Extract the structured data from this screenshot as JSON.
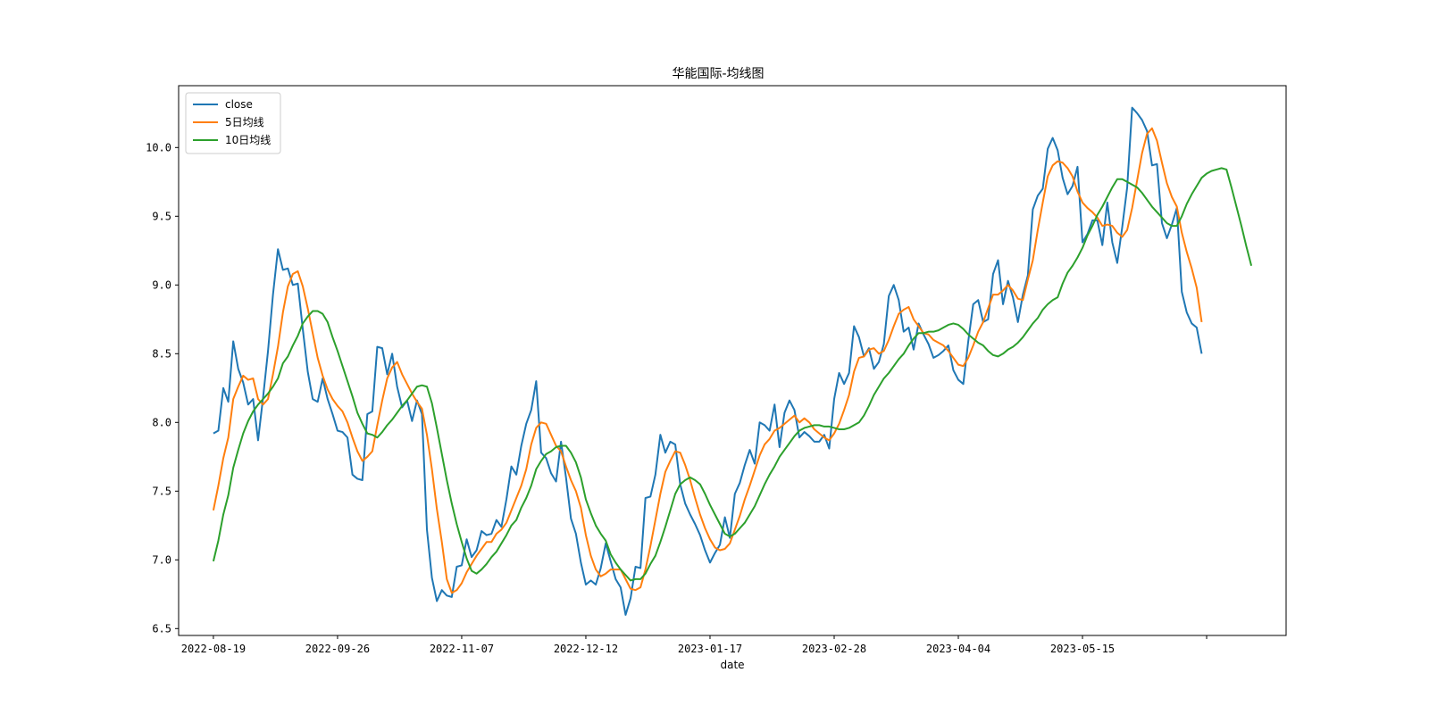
{
  "chart_data": {
    "type": "line",
    "title": "华能国际-均线图",
    "xlabel": "date",
    "ylabel": "",
    "ylim": [
      6.45,
      10.45
    ],
    "yticks": [
      6.5,
      7.0,
      7.5,
      8.0,
      8.5,
      9.0,
      9.5,
      10.0
    ],
    "ytick_labels": [
      "6.5",
      "7.0",
      "7.5",
      "8.0",
      "8.5",
      "9.0",
      "9.5",
      "10.0"
    ],
    "xlim": [
      -7,
      216
    ],
    "xticks": [
      0,
      25,
      50,
      75,
      100,
      125,
      150,
      175,
      200
    ],
    "xtick_labels": [
      "2022-08-19",
      "2022-09-26",
      "2022-11-07",
      "2022-12-12",
      "2023-01-17",
      "2023-02-28",
      "2023-04-04",
      "2023-05-15",
      ""
    ],
    "grid": false,
    "legend_position": "upper-left",
    "series": [
      {
        "name": "close",
        "color": "#1f77b4",
        "values": [
          7.92,
          7.94,
          8.25,
          8.15,
          8.59,
          8.39,
          8.29,
          8.13,
          8.17,
          7.87,
          8.18,
          8.52,
          8.93,
          9.26,
          9.11,
          9.12,
          9.0,
          9.01,
          8.68,
          8.37,
          8.17,
          8.15,
          8.32,
          8.17,
          8.06,
          7.94,
          7.93,
          7.89,
          7.62,
          7.59,
          7.58,
          8.06,
          8.08,
          8.55,
          8.54,
          8.35,
          8.5,
          8.26,
          8.11,
          8.16,
          8.01,
          8.16,
          8.06,
          7.22,
          6.87,
          6.7,
          6.78,
          6.74,
          6.73,
          6.95,
          6.96,
          7.15,
          7.02,
          7.07,
          7.21,
          7.18,
          7.19,
          7.29,
          7.24,
          7.44,
          7.68,
          7.62,
          7.83,
          7.99,
          8.09,
          8.3,
          7.78,
          7.74,
          7.63,
          7.57,
          7.86,
          7.6,
          7.3,
          7.19,
          6.98,
          6.82,
          6.85,
          6.82,
          6.94,
          7.12,
          6.99,
          6.86,
          6.8,
          6.6,
          6.72,
          6.95,
          6.94,
          7.45,
          7.46,
          7.62,
          7.91,
          7.78,
          7.86,
          7.84,
          7.55,
          7.41,
          7.33,
          7.26,
          7.18,
          7.07,
          6.98,
          7.05,
          7.11,
          7.31,
          7.16,
          7.48,
          7.56,
          7.69,
          7.8,
          7.7,
          8.0,
          7.98,
          7.94,
          8.13,
          7.82,
          8.07,
          8.16,
          8.09,
          7.89,
          7.93,
          7.9,
          7.86,
          7.86,
          7.91,
          7.81,
          8.17,
          8.36,
          8.28,
          8.36,
          8.7,
          8.62,
          8.48,
          8.54,
          8.39,
          8.44,
          8.57,
          8.92,
          9.0,
          8.89,
          8.66,
          8.69,
          8.53,
          8.72,
          8.64,
          8.57,
          8.47,
          8.49,
          8.52,
          8.56,
          8.38,
          8.31,
          8.28,
          8.59,
          8.86,
          8.89,
          8.73,
          8.75,
          9.08,
          9.18,
          8.86,
          9.03,
          8.91,
          8.73,
          8.93,
          9.07,
          9.55,
          9.65,
          9.7,
          9.99,
          10.07,
          9.98,
          9.78,
          9.66,
          9.72,
          9.86,
          9.31,
          9.37,
          9.47,
          9.47,
          9.29,
          9.6,
          9.31,
          9.16,
          9.42,
          9.71,
          10.29,
          10.25,
          10.2,
          10.12,
          9.87,
          9.88,
          9.45,
          9.34,
          9.44,
          9.56,
          8.95,
          8.8,
          8.72,
          8.69,
          8.5
        ]
      },
      {
        "name": "5日均线",
        "color": "#ff7f0e",
        "values": [
          7.36,
          7.54,
          7.74,
          7.89,
          8.17,
          8.26,
          8.34,
          8.31,
          8.32,
          8.17,
          8.13,
          8.17,
          8.35,
          8.55,
          8.8,
          8.99,
          9.08,
          9.1,
          8.99,
          8.83,
          8.65,
          8.47,
          8.34,
          8.24,
          8.17,
          8.12,
          8.08,
          8.0,
          7.89,
          7.79,
          7.72,
          7.75,
          7.79,
          7.98,
          8.16,
          8.32,
          8.4,
          8.44,
          8.35,
          8.28,
          8.21,
          8.15,
          8.1,
          7.91,
          7.66,
          7.37,
          7.13,
          6.86,
          6.76,
          6.78,
          6.83,
          6.91,
          6.97,
          7.03,
          7.08,
          7.13,
          7.13,
          7.19,
          7.22,
          7.27,
          7.36,
          7.45,
          7.54,
          7.66,
          7.84,
          7.96,
          8.0,
          7.99,
          7.91,
          7.83,
          7.79,
          7.68,
          7.58,
          7.5,
          7.38,
          7.18,
          7.03,
          6.93,
          6.88,
          6.9,
          6.93,
          6.93,
          6.93,
          6.86,
          6.79,
          6.78,
          6.8,
          6.93,
          7.1,
          7.29,
          7.48,
          7.64,
          7.72,
          7.79,
          7.78,
          7.69,
          7.58,
          7.45,
          7.33,
          7.23,
          7.15,
          7.09,
          7.07,
          7.08,
          7.12,
          7.22,
          7.32,
          7.44,
          7.54,
          7.65,
          7.76,
          7.84,
          7.88,
          7.94,
          7.96,
          7.99,
          8.02,
          8.05,
          8.0,
          8.03,
          8.0,
          7.95,
          7.92,
          7.89,
          7.87,
          7.92,
          7.99,
          8.09,
          8.2,
          8.37,
          8.47,
          8.48,
          8.53,
          8.54,
          8.5,
          8.52,
          8.6,
          8.7,
          8.79,
          8.82,
          8.84,
          8.75,
          8.7,
          8.65,
          8.64,
          8.6,
          8.58,
          8.56,
          8.52,
          8.47,
          8.42,
          8.41,
          8.47,
          8.56,
          8.66,
          8.73,
          8.83,
          8.93,
          8.93,
          8.96,
          9.0,
          8.96,
          8.9,
          8.89,
          9.04,
          9.18,
          9.4,
          9.6,
          9.79,
          9.87,
          9.9,
          9.89,
          9.85,
          9.79,
          9.68,
          9.6,
          9.56,
          9.53,
          9.49,
          9.43,
          9.44,
          9.43,
          9.38,
          9.35,
          9.4,
          9.56,
          9.76,
          9.96,
          10.1,
          10.14,
          10.05,
          9.89,
          9.74,
          9.64,
          9.57,
          9.38,
          9.24,
          9.12,
          8.98,
          8.73
        ]
      },
      {
        "name": "10日均线",
        "color": "#2ca02c",
        "values": [
          6.99,
          7.14,
          7.33,
          7.47,
          7.67,
          7.8,
          7.92,
          8.01,
          8.08,
          8.13,
          8.17,
          8.21,
          8.26,
          8.32,
          8.43,
          8.48,
          8.56,
          8.63,
          8.72,
          8.77,
          8.81,
          8.81,
          8.79,
          8.73,
          8.62,
          8.52,
          8.41,
          8.3,
          8.19,
          8.07,
          7.99,
          7.92,
          7.91,
          7.89,
          7.93,
          7.98,
          8.02,
          8.07,
          8.12,
          8.16,
          8.21,
          8.26,
          8.27,
          8.26,
          8.14,
          7.96,
          7.77,
          7.58,
          7.41,
          7.26,
          7.13,
          7.01,
          6.92,
          6.9,
          6.93,
          6.97,
          7.02,
          7.06,
          7.12,
          7.18,
          7.25,
          7.29,
          7.38,
          7.45,
          7.54,
          7.66,
          7.72,
          7.77,
          7.79,
          7.82,
          7.83,
          7.83,
          7.78,
          7.71,
          7.6,
          7.44,
          7.34,
          7.25,
          7.19,
          7.14,
          7.04,
          6.98,
          6.93,
          6.89,
          6.85,
          6.86,
          6.86,
          6.9,
          6.97,
          7.03,
          7.13,
          7.24,
          7.36,
          7.48,
          7.55,
          7.58,
          7.6,
          7.58,
          7.55,
          7.48,
          7.4,
          7.33,
          7.26,
          7.19,
          7.17,
          7.19,
          7.23,
          7.27,
          7.33,
          7.39,
          7.47,
          7.55,
          7.62,
          7.68,
          7.75,
          7.8,
          7.85,
          7.9,
          7.94,
          7.96,
          7.97,
          7.98,
          7.98,
          7.97,
          7.97,
          7.96,
          7.95,
          7.95,
          7.96,
          7.98,
          8.0,
          8.05,
          8.12,
          8.2,
          8.26,
          8.32,
          8.36,
          8.41,
          8.46,
          8.5,
          8.56,
          8.61,
          8.65,
          8.65,
          8.66,
          8.66,
          8.67,
          8.69,
          8.71,
          8.72,
          8.71,
          8.68,
          8.64,
          8.61,
          8.58,
          8.56,
          8.52,
          8.49,
          8.48,
          8.5,
          8.53,
          8.55,
          8.58,
          8.62,
          8.67,
          8.72,
          8.76,
          8.82,
          8.86,
          8.89,
          8.91,
          9.01,
          9.09,
          9.14,
          9.2,
          9.27,
          9.36,
          9.43,
          9.51,
          9.57,
          9.64,
          9.71,
          9.77,
          9.77,
          9.75,
          9.73,
          9.71,
          9.67,
          9.62,
          9.57,
          9.53,
          9.49,
          9.45,
          9.43,
          9.43,
          9.5,
          9.59,
          9.66,
          9.72,
          9.78,
          9.81,
          9.83,
          9.84,
          9.85,
          9.84,
          9.71,
          9.57,
          9.43,
          9.28,
          9.14
        ]
      }
    ]
  }
}
